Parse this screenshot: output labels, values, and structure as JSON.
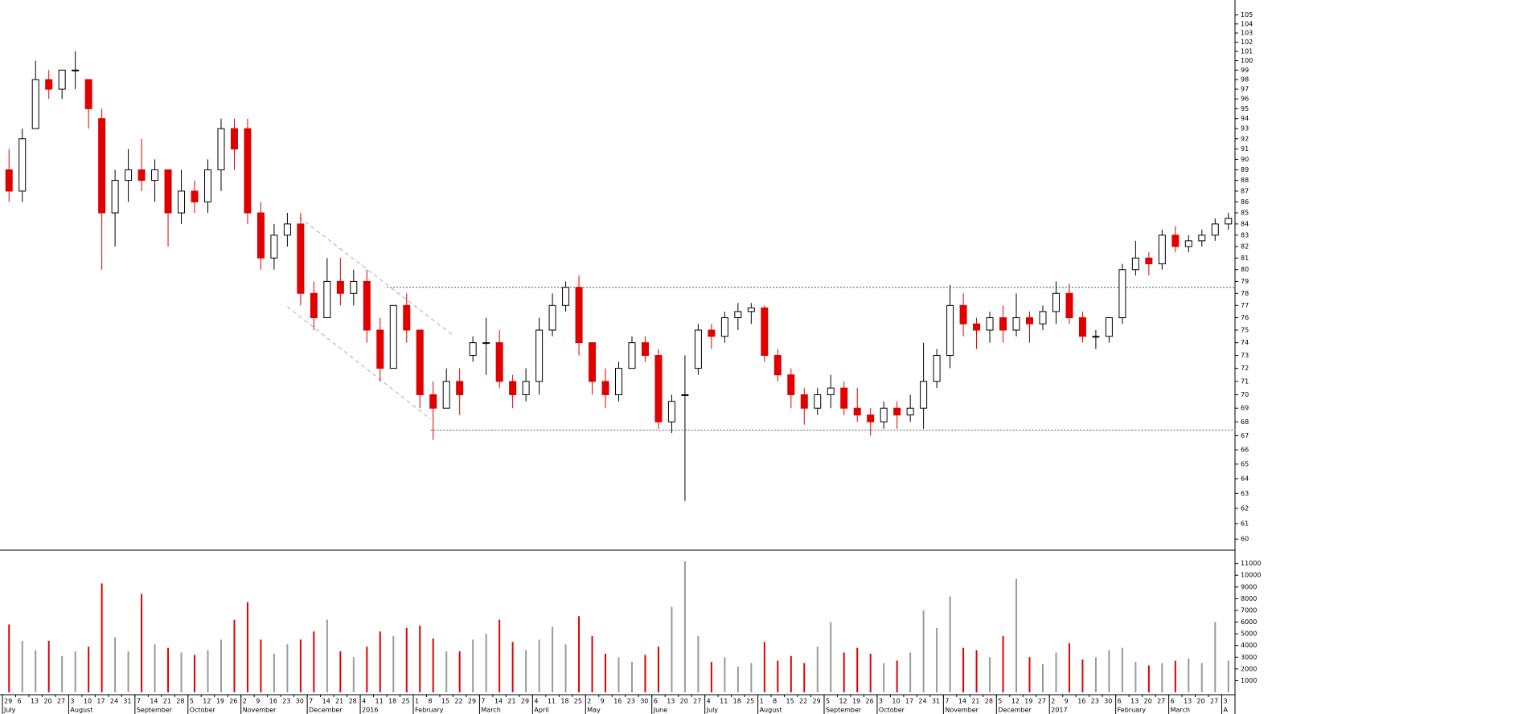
{
  "chart_data": [
    {
      "type": "candlestick",
      "categories": [
        "29",
        "6",
        "13",
        "20",
        "27",
        "3",
        "10",
        "17",
        "24",
        "31",
        "7",
        "14",
        "21",
        "28",
        "5",
        "12",
        "19",
        "26",
        "2",
        "9",
        "16",
        "23",
        "30",
        "7",
        "14",
        "21",
        "28",
        "4",
        "11",
        "18",
        "25",
        "1",
        "8",
        "15",
        "22",
        "29",
        "7",
        "14",
        "21",
        "29",
        "4",
        "11",
        "18",
        "25",
        "2",
        "9",
        "16",
        "23",
        "30",
        "6",
        "13",
        "20",
        "27",
        "4",
        "11",
        "18",
        "25",
        "1",
        "8",
        "15",
        "22",
        "29",
        "5",
        "12",
        "19",
        "26",
        "3",
        "10",
        "17",
        "24",
        "31",
        "7",
        "14",
        "21",
        "28",
        "5",
        "12",
        "19",
        "27",
        "2",
        "9",
        "16",
        "23",
        "30",
        "6",
        "13",
        "20",
        "27",
        "6",
        "13",
        "20",
        "27",
        "3"
      ],
      "month_labels": [
        {
          "label": "July",
          "at": 0
        },
        {
          "label": "August",
          "at": 5
        },
        {
          "label": "September",
          "at": 10
        },
        {
          "label": "October",
          "at": 14
        },
        {
          "label": "November",
          "at": 18
        },
        {
          "label": "December",
          "at": 23
        },
        {
          "label": "2016",
          "at": 27
        },
        {
          "label": "February",
          "at": 31
        },
        {
          "label": "March",
          "at": 36
        },
        {
          "label": "April",
          "at": 40
        },
        {
          "label": "May",
          "at": 44
        },
        {
          "label": "June",
          "at": 49
        },
        {
          "label": "July",
          "at": 53
        },
        {
          "label": "August",
          "at": 57
        },
        {
          "label": "September",
          "at": 62
        },
        {
          "label": "October",
          "at": 66
        },
        {
          "label": "November",
          "at": 71
        },
        {
          "label": "December",
          "at": 75
        },
        {
          "label": "2017",
          "at": 79
        },
        {
          "label": "February",
          "at": 84
        },
        {
          "label": "March",
          "at": 88
        },
        {
          "label": "A",
          "at": 92
        }
      ],
      "open": [
        89,
        87,
        93,
        98,
        97,
        99,
        98,
        94,
        85,
        88,
        89,
        88,
        89,
        85,
        87,
        86,
        89,
        93,
        93,
        85,
        81,
        83,
        84,
        78,
        76,
        79,
        78,
        79,
        75,
        72,
        77,
        75,
        70,
        69,
        71,
        73,
        74,
        74,
        71,
        70,
        71,
        75,
        77,
        78.5,
        74,
        71,
        70,
        72,
        74,
        73,
        68,
        70,
        72,
        75,
        74.5,
        76,
        76.5,
        76.8,
        73,
        71.5,
        70,
        69,
        70,
        70.5,
        69,
        68.5,
        68,
        69,
        68.5,
        69,
        71,
        73,
        77,
        75.5,
        75,
        76,
        75,
        76,
        75.5,
        76.5,
        78,
        76,
        74.5,
        74.5,
        76,
        80,
        81,
        80.5,
        83,
        82,
        82.5,
        83,
        84
      ],
      "high": [
        91,
        93,
        100,
        99,
        99,
        101,
        98,
        95,
        89,
        91,
        92,
        90,
        89,
        89,
        88,
        90,
        94,
        94,
        94,
        86,
        84,
        85,
        85,
        79,
        81,
        81,
        80,
        80,
        76,
        77,
        78,
        75,
        71,
        72,
        72,
        74.5,
        76,
        75,
        71.5,
        72,
        76,
        78,
        79,
        79.5,
        74,
        72,
        72.5,
        74.5,
        74.5,
        73.5,
        70,
        73,
        75.5,
        75.5,
        76.5,
        77.2,
        77.2,
        77,
        73.5,
        72,
        70.5,
        70.5,
        71.5,
        71,
        70.5,
        69,
        69.5,
        69.5,
        70,
        74,
        73.5,
        78.7,
        78,
        76,
        76.5,
        77,
        78,
        76.5,
        77,
        79,
        78.8,
        76.5,
        75,
        76,
        80.5,
        82.5,
        81.5,
        83.5,
        83.8,
        83,
        83.5,
        84.5,
        85
      ],
      "low": [
        86,
        86,
        93,
        96,
        96,
        97,
        93,
        80,
        82,
        86,
        87,
        86,
        82,
        84,
        85,
        85,
        87,
        89,
        84,
        80,
        80,
        82,
        77,
        75,
        76,
        77,
        77,
        74,
        71,
        72,
        74,
        69,
        66.7,
        69,
        68.5,
        72.5,
        71.5,
        70.5,
        69,
        69.5,
        70,
        74.5,
        76.5,
        73,
        70,
        69,
        69.5,
        72,
        72.5,
        67.5,
        67.2,
        62.5,
        71.5,
        73.5,
        74,
        75,
        75.5,
        72.5,
        71,
        69,
        67.8,
        68.5,
        69,
        68.5,
        68,
        67,
        67.5,
        67.5,
        68,
        67.5,
        70.5,
        72,
        74.5,
        73.5,
        74,
        74,
        74.5,
        74,
        75,
        75.5,
        75.5,
        74,
        73.5,
        74,
        75.5,
        79.5,
        79.5,
        80,
        81.5,
        81.5,
        82,
        82.5,
        83.5
      ],
      "close": [
        87,
        92,
        98,
        97,
        99,
        99,
        95,
        85,
        88,
        89,
        88,
        89,
        85,
        87,
        86,
        89,
        93,
        91,
        85,
        81,
        83,
        84,
        78,
        76,
        79,
        78,
        79,
        75,
        72,
        77,
        75,
        70,
        69,
        71,
        70,
        74,
        74,
        71,
        70,
        71,
        75,
        77,
        78.5,
        74,
        71,
        70,
        72,
        74,
        73,
        68,
        69.5,
        70,
        75,
        74.5,
        76,
        76.5,
        76.8,
        73,
        71.5,
        70,
        69,
        70,
        70.5,
        69,
        68.5,
        68,
        69,
        68.5,
        69,
        71,
        73,
        77,
        75.5,
        75,
        76,
        75,
        76,
        75.5,
        76.5,
        78,
        76,
        74.5,
        74.5,
        76,
        80,
        81,
        80.5,
        83,
        82,
        82.5,
        83,
        84,
        84.5
      ],
      "up_color": "#000000",
      "down_color": "#e00000",
      "ylim": [
        59.6,
        105.6
      ],
      "log_scale": true,
      "yticks": [
        60,
        61,
        62,
        63,
        64,
        65,
        66,
        67,
        68,
        69,
        70,
        71,
        72,
        73,
        74,
        75,
        76,
        77,
        78,
        79,
        80,
        81,
        82,
        83,
        84,
        85,
        86,
        87,
        88,
        89,
        90,
        91,
        92,
        93,
        94,
        95,
        96,
        97,
        98,
        99,
        100,
        101,
        102,
        103,
        104,
        105
      ],
      "lines": [
        {
          "style": "dotted",
          "x": [
            29,
            93
          ],
          "values": [
            78.5,
            78.5
          ]
        },
        {
          "style": "dotted",
          "x": [
            32.3,
            93
          ],
          "values": [
            67.4,
            67.4
          ]
        },
        {
          "style": "dashed",
          "x": [
            22.4,
            34.1
          ],
          "values": [
            84.6,
            74.5
          ]
        },
        {
          "style": "dashed",
          "x": [
            21.5,
            32.3
          ],
          "values": [
            76.9,
            68.2
          ]
        }
      ]
    },
    {
      "type": "volume",
      "values": [
        5800,
        4400,
        3600,
        4400,
        3100,
        3500,
        3900,
        9300,
        4700,
        3500,
        8400,
        4100,
        3800,
        3400,
        3200,
        3600,
        4500,
        6200,
        7700,
        4500,
        3300,
        4100,
        4500,
        5200,
        6200,
        3500,
        3000,
        3900,
        5200,
        4800,
        5500,
        5700,
        4600,
        3500,
        3500,
        4500,
        5000,
        6200,
        4300,
        3600,
        4500,
        5600,
        4100,
        6500,
        4800,
        3300,
        3000,
        2600,
        3200,
        3900,
        7300,
        11200,
        4800,
        2600,
        3000,
        2200,
        2500,
        4300,
        2700,
        3100,
        2500,
        3900,
        6000,
        3400,
        3800,
        3300,
        2500,
        2700,
        3400,
        7000,
        5500,
        8200,
        3800,
        3600,
        3000,
        4800,
        9700,
        3000,
        2400,
        3400,
        4200,
        2800,
        3000,
        3600,
        3800,
        2600,
        2300,
        2500,
        2700,
        2900,
        2500,
        6000,
        2700
      ],
      "up_color": "#9a9a9a",
      "down_color": "#e00000",
      "ylim": [
        0,
        11800
      ],
      "yticks": [
        1000,
        2000,
        3000,
        4000,
        5000,
        6000,
        7000,
        8000,
        9000,
        10000,
        11000
      ]
    }
  ]
}
